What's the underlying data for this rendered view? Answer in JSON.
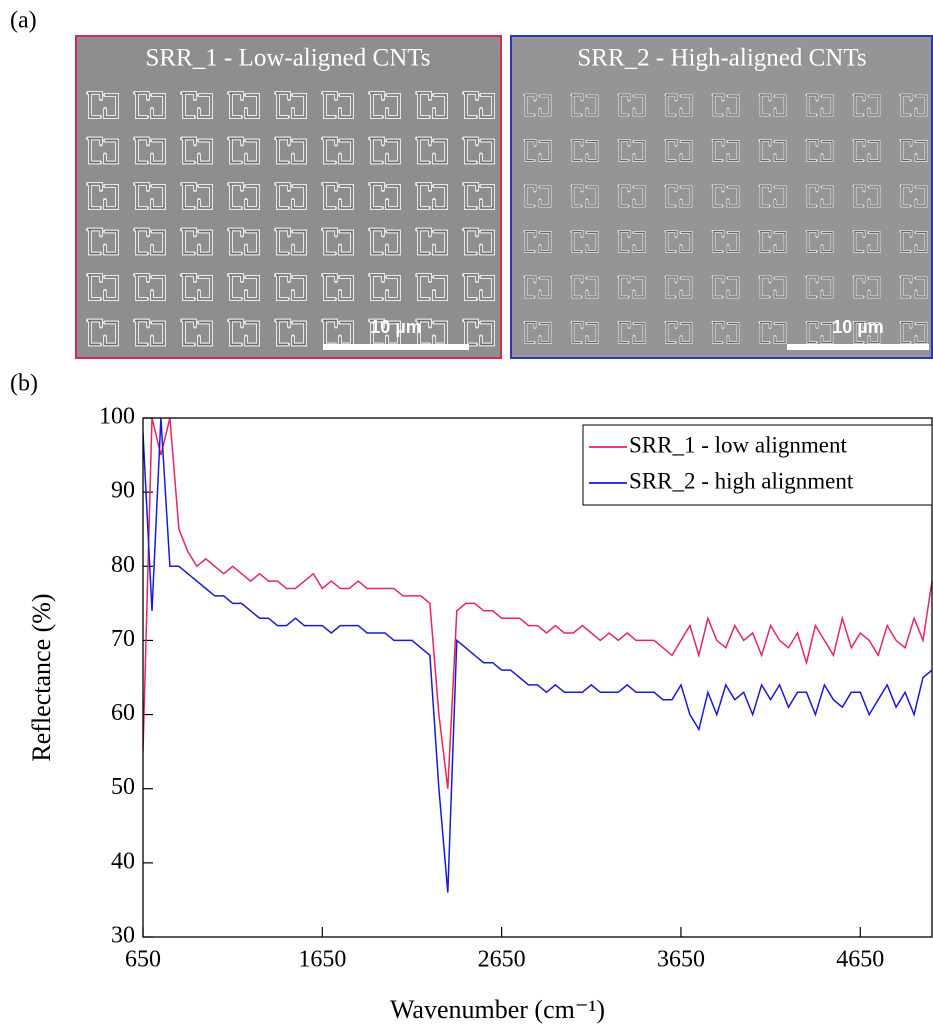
{
  "panels": [
    "(a)",
    "(b)"
  ],
  "images": [
    {
      "caption": "SRR_1 - Low-aligned CNTs",
      "scale_bar": "10 µm"
    },
    {
      "caption": "SRR_2 - High-aligned CNTs",
      "scale_bar": "10 µm"
    }
  ],
  "chart_data": {
    "type": "line",
    "x_label": "Wavenumber (cm⁻¹)",
    "y_label": "Reflectance (%)",
    "x": [
      650,
      700,
      750,
      800,
      850,
      900,
      950,
      1000,
      1050,
      1100,
      1150,
      1200,
      1250,
      1300,
      1350,
      1400,
      1450,
      1500,
      1550,
      1600,
      1650,
      1700,
      1750,
      1800,
      1850,
      1900,
      1950,
      2000,
      2050,
      2100,
      2150,
      2200,
      2250,
      2300,
      2350,
      2400,
      2450,
      2500,
      2550,
      2600,
      2650,
      2700,
      2750,
      2800,
      2850,
      2900,
      2950,
      3000,
      3050,
      3100,
      3150,
      3200,
      3250,
      3300,
      3350,
      3400,
      3450,
      3500,
      3550,
      3600,
      3650,
      3700,
      3750,
      3800,
      3850,
      3900,
      3950,
      4000,
      4050,
      4100,
      4150,
      4200,
      4250,
      4300,
      4350,
      4400,
      4450,
      4500,
      4550,
      4600,
      4650,
      4700,
      4750,
      4800,
      4850,
      4900,
      4950,
      5000,
      5050
    ],
    "series": [
      {
        "name": "SRR_1 - low alignment",
        "color": "#e8265e",
        "values": [
          55,
          100,
          95,
          100,
          85,
          82,
          80,
          81,
          80,
          79,
          80,
          79,
          78,
          79,
          78,
          78,
          77,
          77,
          78,
          79,
          77,
          78,
          77,
          77,
          78,
          77,
          77,
          77,
          77,
          76,
          76,
          76,
          75,
          60,
          50,
          74,
          75,
          75,
          74,
          74,
          73,
          73,
          73,
          72,
          72,
          71,
          72,
          71,
          71,
          72,
          71,
          70,
          71,
          70,
          71,
          70,
          70,
          70,
          69,
          68,
          70,
          72,
          68,
          73,
          70,
          69,
          72,
          70,
          71,
          68,
          72,
          70,
          69,
          71,
          67,
          72,
          70,
          68,
          73,
          69,
          71,
          70,
          68,
          72,
          70,
          69,
          73,
          70,
          78
        ]
      },
      {
        "name": "SRR_2 - high alignment",
        "color": "#1a1ad6",
        "values": [
          98,
          74,
          100,
          80,
          80,
          79,
          78,
          77,
          76,
          76,
          75,
          75,
          74,
          73,
          73,
          72,
          72,
          73,
          72,
          72,
          72,
          71,
          72,
          72,
          72,
          71,
          71,
          71,
          70,
          70,
          70,
          69,
          68,
          50,
          36,
          70,
          69,
          68,
          67,
          67,
          66,
          66,
          65,
          64,
          64,
          63,
          64,
          63,
          63,
          63,
          64,
          63,
          63,
          63,
          64,
          63,
          63,
          63,
          62,
          62,
          64,
          60,
          58,
          63,
          60,
          64,
          62,
          63,
          60,
          64,
          62,
          64,
          61,
          63,
          63,
          60,
          64,
          62,
          61,
          63,
          63,
          60,
          62,
          64,
          61,
          63,
          60,
          65,
          66
        ]
      }
    ],
    "xlim": [
      650,
      5050
    ],
    "ylim": [
      30,
      100
    ],
    "xticks": [
      650,
      1650,
      2650,
      3650,
      4650
    ],
    "yticks": [
      30,
      40,
      50,
      60,
      70,
      80,
      90,
      100
    ],
    "legend": "top-right",
    "grid": false
  }
}
